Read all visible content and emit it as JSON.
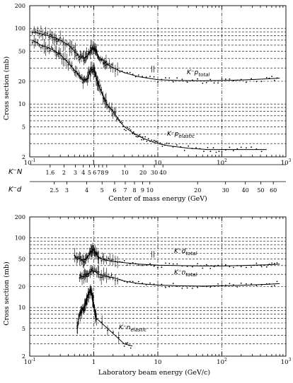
{
  "chart_data": [
    {
      "type": "scatter",
      "xscale": "log",
      "yscale": "log",
      "xlim": [
        0.1,
        1000
      ],
      "ylim": [
        2,
        200
      ],
      "ylabel": "Cross section (mb)",
      "x_tick_labels": [
        "10",
        "1",
        "10",
        "10",
        "10"
      ],
      "x_tick_exponents": [
        "-1",
        "",
        "",
        "2",
        "3"
      ],
      "y_tick_labels": [
        "2",
        "5",
        "10",
        "20",
        "50",
        "100",
        "200"
      ],
      "secondary_axes": [
        {
          "label": "K⁻N",
          "ticks": [
            "1.6",
            "2",
            "3",
            "4",
            "5",
            "6",
            "7",
            "8",
            "9",
            "10",
            "20",
            "30",
            "40"
          ]
        },
        {
          "label": "K⁻d",
          "ticks": [
            "2.5",
            "3",
            "4",
            "5",
            "6",
            "7",
            "8",
            "9",
            "10",
            "20",
            "30",
            "40",
            "50",
            "60"
          ]
        }
      ],
      "xlabel": "Center of mass energy (GeV)",
      "series": [
        {
          "name": "K⁻p total",
          "x": [
            0.11,
            0.15,
            0.2,
            0.25,
            0.3,
            0.4,
            0.5,
            0.6,
            0.7,
            0.8,
            0.9,
            1.0,
            1.1,
            1.2,
            1.4,
            1.6,
            2,
            3,
            5,
            10,
            20,
            50,
            100,
            200,
            500,
            800
          ],
          "y": [
            90,
            85,
            80,
            75,
            70,
            60,
            50,
            42,
            40,
            44,
            52,
            55,
            48,
            42,
            38,
            34,
            30,
            26,
            23,
            21,
            20.5,
            20.3,
            20.5,
            20.8,
            21.5,
            22
          ]
        },
        {
          "name": "K⁻p elastic",
          "x": [
            0.11,
            0.15,
            0.2,
            0.25,
            0.3,
            0.4,
            0.5,
            0.6,
            0.7,
            0.8,
            0.9,
            1.0,
            1.05,
            1.1,
            1.2,
            1.4,
            1.6,
            2,
            2.5,
            3,
            4,
            5,
            6,
            8,
            10,
            15,
            30,
            60,
            100,
            200,
            500
          ],
          "y": [
            70,
            60,
            55,
            50,
            45,
            35,
            28,
            23,
            20,
            22,
            28,
            30,
            26,
            22,
            17,
            13,
            10,
            8,
            6,
            5,
            4.2,
            3.8,
            3.5,
            3.2,
            3,
            2.8,
            2.6,
            2.5,
            2.5,
            2.5,
            2.5
          ]
        }
      ],
      "annotations": [
        "K⁻p total",
        "K⁻p elastic",
        "||"
      ]
    },
    {
      "type": "scatter",
      "xscale": "log",
      "yscale": "log",
      "xlim": [
        0.1,
        1000
      ],
      "ylim": [
        2,
        200
      ],
      "ylabel": "Cross section (mb)",
      "xlabel": "Laboratory beam energy (GeV/c)",
      "x_tick_labels": [
        "10",
        "1",
        "10",
        "10",
        "10"
      ],
      "x_tick_exponents": [
        "-1",
        "",
        "",
        "2",
        "3"
      ],
      "y_tick_labels": [
        "2",
        "5",
        "10",
        "20",
        "50",
        "100",
        "200"
      ],
      "series": [
        {
          "name": "K⁻d total",
          "x": [
            0.5,
            0.6,
            0.7,
            0.8,
            0.9,
            1.0,
            1.1,
            1.2,
            1.5,
            2,
            3,
            5,
            10,
            20,
            50,
            100,
            200,
            500,
            800
          ],
          "y": [
            55,
            50,
            48,
            52,
            62,
            68,
            58,
            52,
            48,
            46,
            44,
            42,
            40.5,
            40,
            39.5,
            39.5,
            40,
            41,
            42
          ]
        },
        {
          "name": "K⁻n total",
          "x": [
            0.6,
            0.7,
            0.8,
            0.9,
            1.0,
            1.2,
            1.5,
            2,
            3,
            5,
            10,
            20,
            50,
            100,
            200,
            500,
            800
          ],
          "y": [
            27,
            28,
            30,
            33,
            34,
            30,
            28,
            27,
            24,
            22,
            21,
            20.5,
            20.3,
            20.5,
            20.8,
            21.5,
            22
          ]
        },
        {
          "name": "K⁻n elastic",
          "x": [
            0.55,
            0.6,
            0.65,
            0.7,
            0.75,
            0.8,
            0.85,
            0.9,
            0.95,
            1.0,
            1.05,
            1.1,
            3,
            4
          ],
          "y": [
            5,
            8,
            9,
            10,
            12,
            14,
            16,
            18,
            14,
            11,
            8,
            7,
            3,
            2.8
          ]
        }
      ],
      "annotations": [
        "K⁻d total",
        "K⁻n total",
        "K⁻n elastic",
        "||"
      ]
    }
  ]
}
